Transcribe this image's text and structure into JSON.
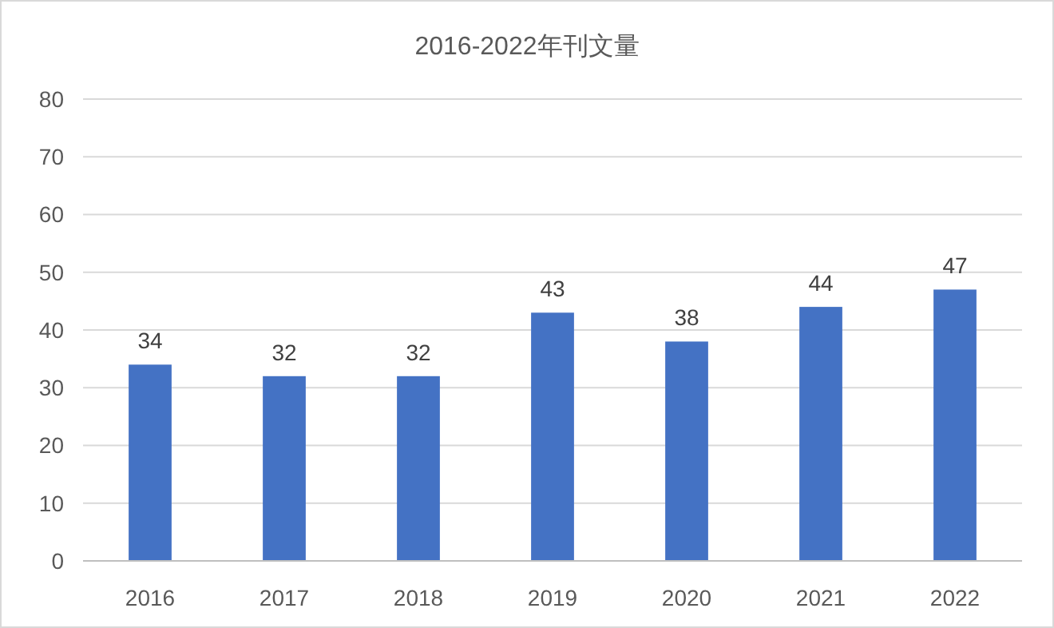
{
  "chart_data": {
    "type": "bar",
    "title": "2016-2022年刊文量",
    "categories": [
      "2016",
      "2017",
      "2018",
      "2019",
      "2020",
      "2021",
      "2022"
    ],
    "values": [
      34,
      32,
      32,
      43,
      38,
      44,
      47
    ],
    "color": "#4472c4",
    "ylim": [
      0,
      80
    ],
    "yticks": [
      0,
      10,
      20,
      30,
      40,
      50,
      60,
      70,
      80
    ],
    "grid": "y",
    "data_labels": true
  }
}
